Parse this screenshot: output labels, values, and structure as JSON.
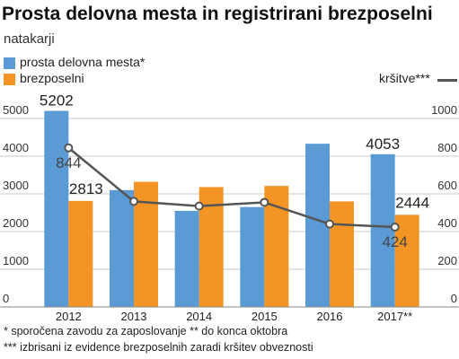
{
  "title": "Prosta delovna mesta in registrirani brezposelni",
  "subtitle": "natakarji",
  "legend": {
    "s1": "prosta delovna mesta*",
    "s2": "brezposelni",
    "s3": "kršitve***"
  },
  "footnotes": [
    "* sporočena zavodu za zaposlovanje   ** do konca oktobra",
    "*** izbrisani iz evidence brezposelnih zaradi kršitev obveznosti"
  ],
  "colors": {
    "s1": "#5b9bd5",
    "s2": "#f39424",
    "s3": "#555555"
  },
  "chart_data": {
    "type": "bar",
    "categories": [
      "2012",
      "2013",
      "2014",
      "2015",
      "2016",
      "2017**"
    ],
    "series": [
      {
        "name": "prosta delovna mesta*",
        "axis": "left",
        "values": [
          5202,
          3100,
          2550,
          2650,
          4330,
          4053
        ]
      },
      {
        "name": "brezposelni",
        "axis": "left",
        "values": [
          2813,
          3320,
          3180,
          3210,
          2800,
          2444
        ]
      },
      {
        "name": "kršitve***",
        "type": "line",
        "axis": "right",
        "values": [
          844,
          560,
          535,
          555,
          440,
          424
        ]
      }
    ],
    "left_axis": {
      "ylim": [
        0,
        6000
      ],
      "ticks": [
        "0",
        "1000",
        "2000",
        "3000",
        "4000",
        "5000"
      ]
    },
    "right_axis": {
      "ylim": [
        0,
        1200
      ],
      "ticks": [
        "0",
        "200",
        "400",
        "600",
        "800",
        "1000"
      ]
    },
    "data_labels": {
      "prosta delovna mesta*": [
        "5202",
        "",
        "",
        "",
        "",
        "4053"
      ],
      "brezposelni": [
        "2813",
        "",
        "",
        "",
        "",
        "2444"
      ],
      "kršitve***": [
        "844",
        "",
        "",
        "",
        "",
        "424"
      ]
    },
    "grid": true,
    "legend_position": "top"
  }
}
